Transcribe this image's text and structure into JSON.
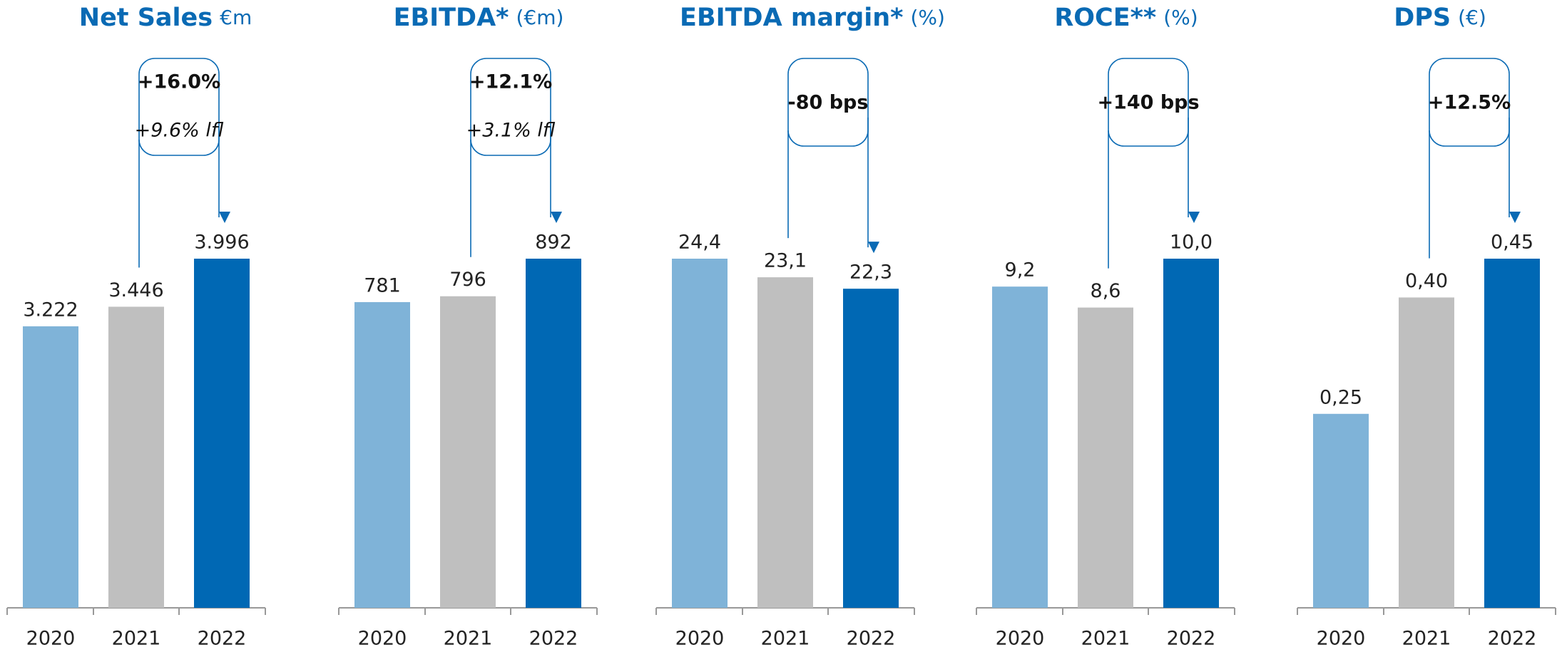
{
  "chart_data": [
    {
      "type": "bar",
      "title": "Net Sales",
      "unit": "€m",
      "categories": [
        "2020",
        "2021",
        "2022"
      ],
      "values": [
        3222,
        3446,
        3996
      ],
      "value_labels": [
        "3.222",
        "3.446",
        "3.996"
      ],
      "colors": [
        "#7fb3d8",
        "#bfbfbf",
        "#0068b4"
      ],
      "annotations": [
        "+16.0%",
        "+9.6% lfl"
      ]
    },
    {
      "type": "bar",
      "title": "EBITDA*",
      "unit": "(€m)",
      "categories": [
        "2020",
        "2021",
        "2022"
      ],
      "values": [
        781,
        796,
        892
      ],
      "colors": [
        "#7fb3d8",
        "#bfbfbf",
        "#0068b4"
      ],
      "annotations": [
        "+12.1%",
        "+3.1% lfl"
      ]
    },
    {
      "type": "bar",
      "title": "EBITDA margin*",
      "unit": "(%)",
      "categories": [
        "2020",
        "2021",
        "2022"
      ],
      "values": [
        24.4,
        23.1,
        22.3
      ],
      "value_labels": [
        "24,4",
        "23,1",
        "22,3"
      ],
      "colors": [
        "#7fb3d8",
        "#bfbfbf",
        "#0068b4"
      ],
      "annotations": [
        "-80 bps"
      ]
    },
    {
      "type": "bar",
      "title": "ROCE**",
      "unit": "(%)",
      "categories": [
        "2020",
        "2021",
        "2022"
      ],
      "values": [
        9.2,
        8.6,
        10.0
      ],
      "value_labels": [
        "9,2",
        "8,6",
        "10,0"
      ],
      "colors": [
        "#7fb3d8",
        "#bfbfbf",
        "#0068b4"
      ],
      "annotations": [
        "+140 bps"
      ]
    },
    {
      "type": "bar",
      "title": "DPS",
      "unit": "(€)",
      "categories": [
        "2020",
        "2021",
        "2022"
      ],
      "values": [
        0.25,
        0.4,
        0.45
      ],
      "value_labels": [
        "0,25",
        "0,40",
        "0,45"
      ],
      "colors": [
        "#7fb3d8",
        "#bfbfbf",
        "#0068b4"
      ],
      "annotations": [
        "+12.5%"
      ]
    }
  ]
}
